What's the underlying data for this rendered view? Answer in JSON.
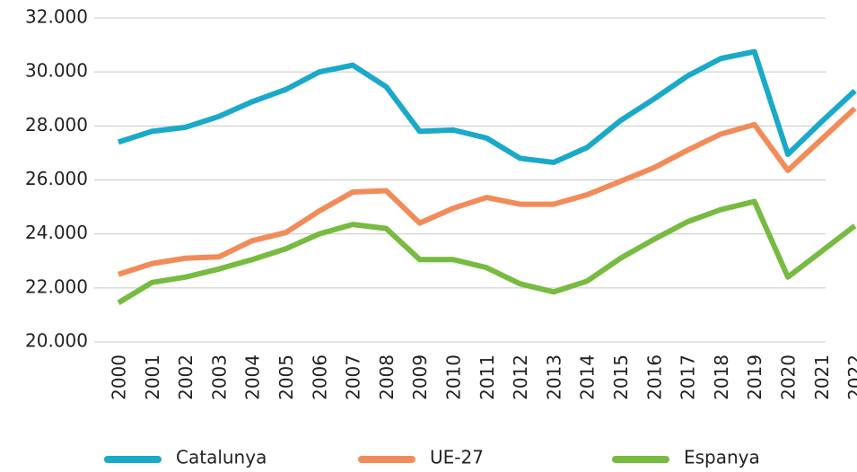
{
  "chart_data": {
    "type": "line",
    "categories": [
      "2000",
      "2001",
      "2002",
      "2003",
      "2004",
      "2005",
      "2006",
      "2007",
      "2008",
      "2009",
      "2010",
      "2011",
      "2012",
      "2013",
      "2014",
      "2015",
      "2016",
      "2017",
      "2018",
      "2019",
      "2020",
      "2021",
      "2022"
    ],
    "series": [
      {
        "name": "Catalunya",
        "color": "#1aa9c9",
        "values": [
          27400,
          27800,
          27950,
          28350,
          28900,
          29350,
          30000,
          30250,
          29450,
          27800,
          27850,
          27550,
          26800,
          26650,
          27200,
          28200,
          29000,
          29850,
          30500,
          30750,
          26950,
          28150,
          29300
        ]
      },
      {
        "name": "UE-27",
        "color": "#f28b5a",
        "values": [
          22500,
          22900,
          23100,
          23150,
          23750,
          24050,
          24850,
          25550,
          25600,
          24400,
          24950,
          25350,
          25100,
          25100,
          25450,
          25950,
          26450,
          27100,
          27700,
          28050,
          26350,
          27500,
          28650
        ]
      },
      {
        "name": "Espanya",
        "color": "#77bb41",
        "values": [
          21450,
          22200,
          22400,
          22700,
          23050,
          23450,
          24000,
          24350,
          24200,
          23050,
          23050,
          22750,
          22150,
          21850,
          22250,
          23100,
          23800,
          24450,
          24900,
          25200,
          22400,
          23350,
          24300
        ]
      }
    ],
    "ylim": [
      20000,
      32000
    ],
    "yticks": [
      {
        "value": 20000,
        "label": "20.000"
      },
      {
        "value": 22000,
        "label": "22.000"
      },
      {
        "value": 24000,
        "label": "24.000"
      },
      {
        "value": 26000,
        "label": "26.000"
      },
      {
        "value": 28000,
        "label": "28.000"
      },
      {
        "value": 30000,
        "label": "30.000"
      },
      {
        "value": 32000,
        "label": "32.000"
      }
    ],
    "grid": true,
    "legend": "bottom"
  }
}
